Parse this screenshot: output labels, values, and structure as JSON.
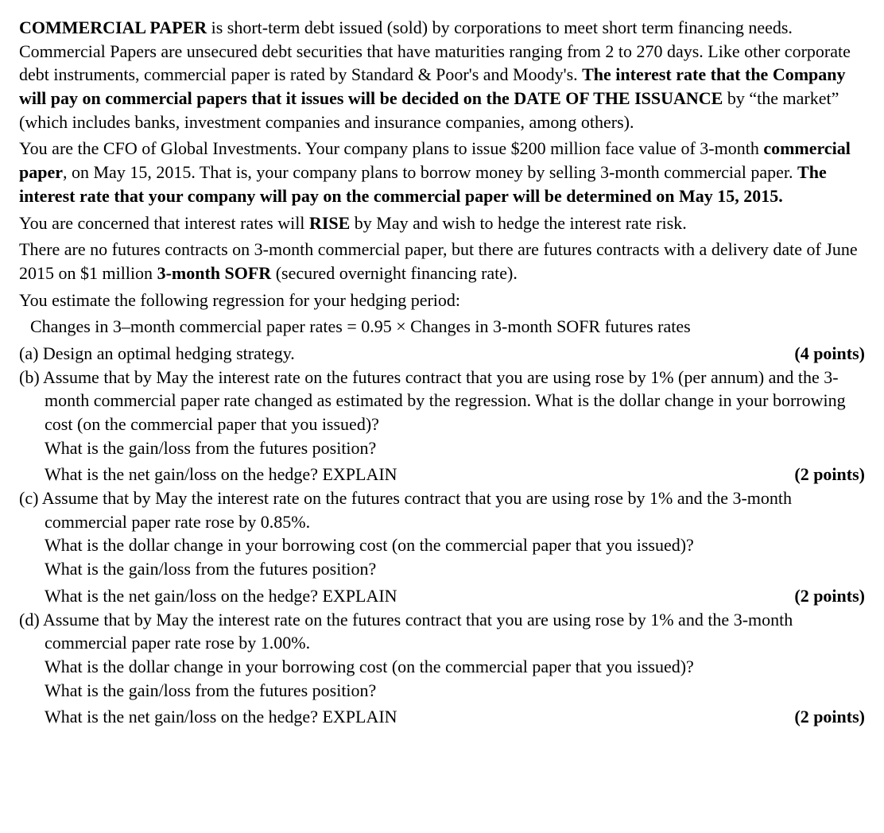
{
  "intro": {
    "p1_parts": [
      {
        "t": "COMMERCIAL PAPER",
        "b": true
      },
      {
        "t": " is short-term debt issued (sold) by corporations to meet short term financing needs. Commercial Papers are unsecured debt securities that have maturities ranging from 2 to 270 days. Like other corporate debt instruments, commercial paper is rated by Standard & Poor's and Moody's. ",
        "b": false
      },
      {
        "t": "The interest rate that the Company will pay on commercial papers that it issues will be decided on the DATE OF THE ISSUANCE",
        "b": true
      },
      {
        "t": " by “the market” (which includes banks, investment companies and insurance companies, among others).",
        "b": false
      }
    ],
    "p2_parts": [
      {
        "t": "You are the CFO of Global Investments. Your company plans to issue $200 million face value of 3-month ",
        "b": false
      },
      {
        "t": "commercial paper",
        "b": true
      },
      {
        "t": ", on May 15, 2015. That is, your company plans to borrow money by selling 3-month commercial paper. ",
        "b": false
      },
      {
        "t": "The interest rate that your company will pay on the commercial paper will be determined on May 15, 2015.",
        "b": true
      }
    ],
    "p3_parts": [
      {
        "t": "You are concerned that interest rates will ",
        "b": false
      },
      {
        "t": "RISE",
        "b": true
      },
      {
        "t": " by May and wish to hedge the interest rate risk.",
        "b": false
      }
    ],
    "p4_parts": [
      {
        "t": "There are no futures contracts on 3-month commercial paper, but there are futures contracts with a delivery date of June 2015 on $1 million ",
        "b": false
      },
      {
        "t": "3-month SOFR",
        "b": true
      },
      {
        "t": " (secured overnight financing rate).",
        "b": false
      }
    ],
    "p5": "You estimate the following regression for your hedging period:",
    "regression": "Changes in 3–month commercial paper rates = 0.95 × Changes in 3-month SOFR futures rates"
  },
  "parts": {
    "a": {
      "label": "(a) Design an optimal hedging strategy.",
      "points": "(4 points)"
    },
    "b": {
      "lead": "(b) Assume that by May the interest rate on the futures contract that you are using rose by 1% (per annum) and the 3-month commercial paper rate changed as estimated by the regression. What is the dollar change in your borrowing cost (on the commercial paper that you issued)?",
      "q2": "What is the gain/loss from the futures position?",
      "q3": "What is the net gain/loss on the hedge? EXPLAIN",
      "points": "(2 points)"
    },
    "c": {
      "lead": "(c) Assume that by May the interest rate on the futures contract that you are using rose by 1% and the 3-month commercial paper rate rose by 0.85%.",
      "q1": "What is the dollar change in your borrowing cost (on the commercial paper that you issued)?",
      "q2": "What is the gain/loss from the futures position?",
      "q3": "What is the net gain/loss on the hedge? EXPLAIN",
      "points": "(2 points)"
    },
    "d": {
      "lead": "(d) Assume that by May the interest rate on the futures contract that you are using rose by 1% and the 3-month commercial paper rate rose by 1.00%.",
      "q1": "What is the dollar change in your borrowing cost (on the commercial paper that you issued)?",
      "q2": "What is the gain/loss from the futures position?",
      "q3": "What is the net gain/loss on the hedge? EXPLAIN",
      "points": "(2 points)"
    }
  }
}
